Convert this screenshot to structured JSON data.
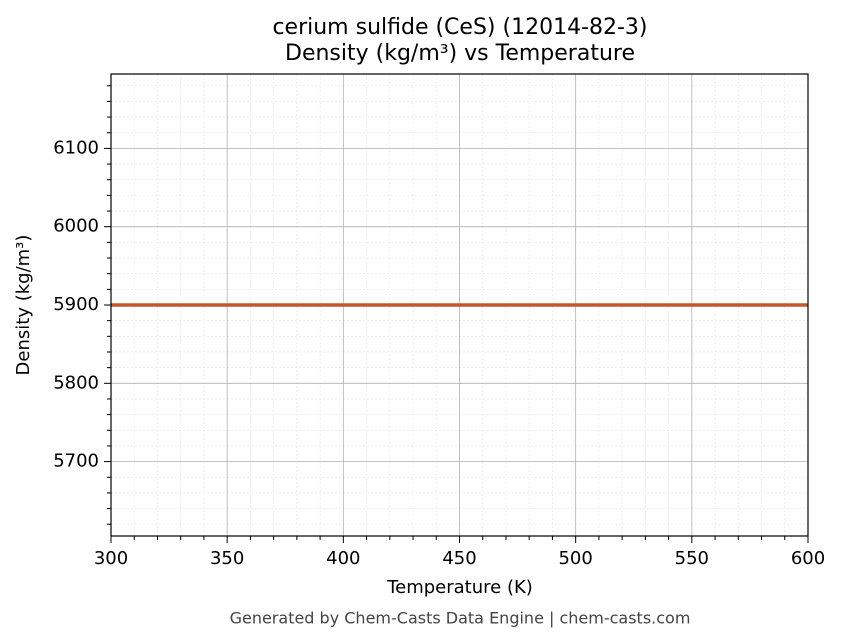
{
  "chart_data": {
    "type": "line",
    "title": "cerium sulfide (CeS) (12014-82-3)",
    "subtitle": "Density (kg/m³) vs Temperature",
    "xlabel": "Temperature (K)",
    "ylabel": "Density (kg/m³)",
    "footer": "Generated by Chem-Casts Data Engine | chem-casts.com",
    "x": [
      300,
      600
    ],
    "series": [
      {
        "name": "Density",
        "color": "#c4562c",
        "values": [
          5900,
          5900
        ]
      }
    ],
    "xlim": [
      300,
      600
    ],
    "xticks": [
      300,
      350,
      400,
      450,
      500,
      550,
      600
    ],
    "ylim": [
      5605,
      6195
    ],
    "yticks": [
      5700,
      5800,
      5900,
      6000,
      6100
    ],
    "xminorticks": [
      310,
      320,
      330,
      340,
      360,
      370,
      380,
      390,
      410,
      420,
      430,
      440,
      460,
      470,
      480,
      490,
      510,
      520,
      530,
      540,
      560,
      570,
      580,
      590
    ],
    "yminorticks": [
      5620,
      5640,
      5660,
      5680,
      5720,
      5740,
      5760,
      5780,
      5820,
      5840,
      5860,
      5880,
      5920,
      5940,
      5960,
      5980,
      6020,
      6040,
      6060,
      6080,
      6120,
      6140,
      6160,
      6180
    ],
    "grid": true,
    "minor_grid": true,
    "legend": false
  }
}
